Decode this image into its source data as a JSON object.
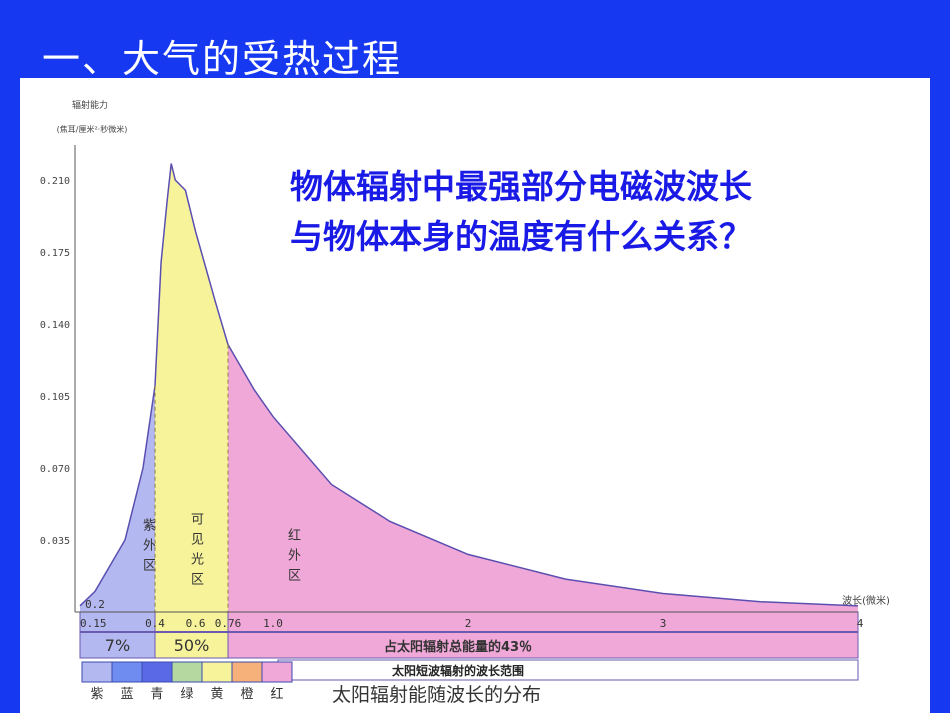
{
  "slide_title": "一、大气的受热过程",
  "question": [
    "物体辐射中最强部分电磁波波长",
    "与物体本身的温度有什么关系？"
  ],
  "colors": {
    "background": "#1638f0",
    "question": "#1a1ae6",
    "uv": "#b4b8f0",
    "visible": "#f6f39a",
    "infrared": "#f0a8d8"
  },
  "chart_data": {
    "type": "area",
    "title": "太阳辐射能随波长的分布",
    "ylabel": "辐射能力",
    "yunit": "(焦耳/厘米²·秒微米)",
    "xlabel": "波长(微米)",
    "ylim": [
      0,
      0.22
    ],
    "xlim": [
      0.15,
      4
    ],
    "yticks": [
      "0.035",
      "0.070",
      "0.105",
      "0.140",
      "0.175",
      "0.210"
    ],
    "ytick_values": [
      0.035,
      0.07,
      0.105,
      0.14,
      0.175,
      0.21
    ],
    "xticks": [
      "0.15",
      "0.2",
      "0.4",
      "0.6",
      "0.76",
      "1.0",
      "2",
      "3",
      "4"
    ],
    "xtick_values": [
      0.15,
      0.2,
      0.4,
      0.6,
      0.76,
      1.0,
      2,
      3,
      4
    ],
    "x": [
      0.15,
      0.2,
      0.3,
      0.36,
      0.4,
      0.43,
      0.46,
      0.48,
      0.5,
      0.55,
      0.6,
      0.7,
      0.76,
      0.9,
      1.0,
      1.3,
      1.6,
      2.0,
      2.5,
      3.0,
      3.5,
      4.0
    ],
    "y": [
      0.003,
      0.01,
      0.035,
      0.07,
      0.11,
      0.17,
      0.2,
      0.218,
      0.21,
      0.205,
      0.185,
      0.15,
      0.13,
      0.108,
      0.095,
      0.062,
      0.044,
      0.028,
      0.016,
      0.009,
      0.005,
      0.003
    ],
    "regions": [
      {
        "label": "紫外区",
        "from": 0.15,
        "to": 0.4,
        "share": "7%"
      },
      {
        "label": "可见光区",
        "from": 0.4,
        "to": 0.76,
        "share": "50%"
      },
      {
        "label": "红外区",
        "from": 0.76,
        "to": 4,
        "share": "占太阳辐射总能量的43％"
      }
    ],
    "range_label": "太阳短波辐射的波长范围",
    "spectrum": [
      {
        "label": "紫",
        "color": "#b4b8f0"
      },
      {
        "label": "蓝",
        "color": "#6f8cf0"
      },
      {
        "label": "青",
        "color": "#5a6ae6"
      },
      {
        "label": "绿",
        "color": "#b4d8a0"
      },
      {
        "label": "黄",
        "color": "#f6f39a"
      },
      {
        "label": "橙",
        "color": "#f6b07a"
      },
      {
        "label": "红",
        "color": "#f0a8d8"
      }
    ]
  }
}
